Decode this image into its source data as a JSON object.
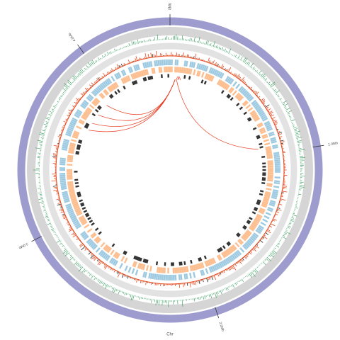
{
  "chart_data": {
    "type": "circos",
    "xlabel": "Chr",
    "xlim": [
      0,
      4.45
    ],
    "xticks": [
      {
        "value": 0,
        "label": "0Mb"
      },
      {
        "value": 1,
        "label": "1.0Mb"
      },
      {
        "value": 2,
        "label": "2.0Mb"
      },
      {
        "value": 3,
        "label": "3.0Mb"
      },
      {
        "value": 4,
        "label": "4.0Mb"
      }
    ],
    "link_color": "#e8391d",
    "links": [
      [
        0.04,
        3.9
      ],
      [
        0.04,
        3.8
      ],
      [
        0.04,
        3.72
      ],
      [
        0.04,
        3.66
      ],
      [
        0.05,
        0.95
      ],
      [
        0.05,
        0.07
      ],
      [
        0.06,
        0.08
      ]
    ]
  }
}
